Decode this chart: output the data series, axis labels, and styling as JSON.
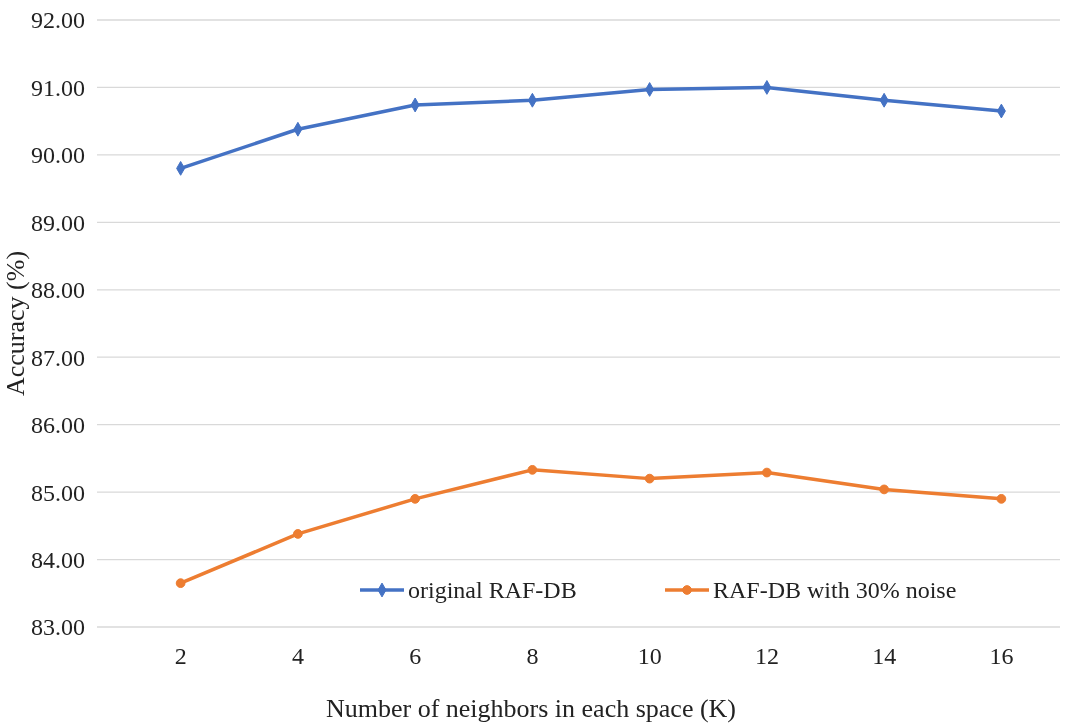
{
  "chart_data": {
    "type": "line",
    "xlabel": "Number of neighbors in each space (K)",
    "ylabel": "Accuracy (%)",
    "categories": [
      "2",
      "4",
      "6",
      "8",
      "10",
      "12",
      "14",
      "16"
    ],
    "series": [
      {
        "name": "original RAF-DB",
        "color": "#4472c4",
        "marker": "diamond",
        "values": [
          89.8,
          90.38,
          90.74,
          90.81,
          90.97,
          91.0,
          90.81,
          90.65
        ]
      },
      {
        "name": "RAF-DB with 30% noise",
        "color": "#ed7d31",
        "marker": "circle",
        "values": [
          83.65,
          84.38,
          84.9,
          85.33,
          85.2,
          85.29,
          85.04,
          84.9
        ]
      }
    ],
    "ylim": [
      83,
      92
    ],
    "yticks": [
      {
        "value": 83,
        "label": "83.00"
      },
      {
        "value": 84,
        "label": "84.00"
      },
      {
        "value": 85,
        "label": "85.00"
      },
      {
        "value": 86,
        "label": "86.00"
      },
      {
        "value": 87,
        "label": "87.00"
      },
      {
        "value": 88,
        "label": "88.00"
      },
      {
        "value": 89,
        "label": "89.00"
      },
      {
        "value": 90,
        "label": "90.00"
      },
      {
        "value": 91,
        "label": "91.00"
      },
      {
        "value": 92,
        "label": "92.00"
      }
    ],
    "grid": "y",
    "legend": "bottom",
    "line_style": "solid"
  }
}
